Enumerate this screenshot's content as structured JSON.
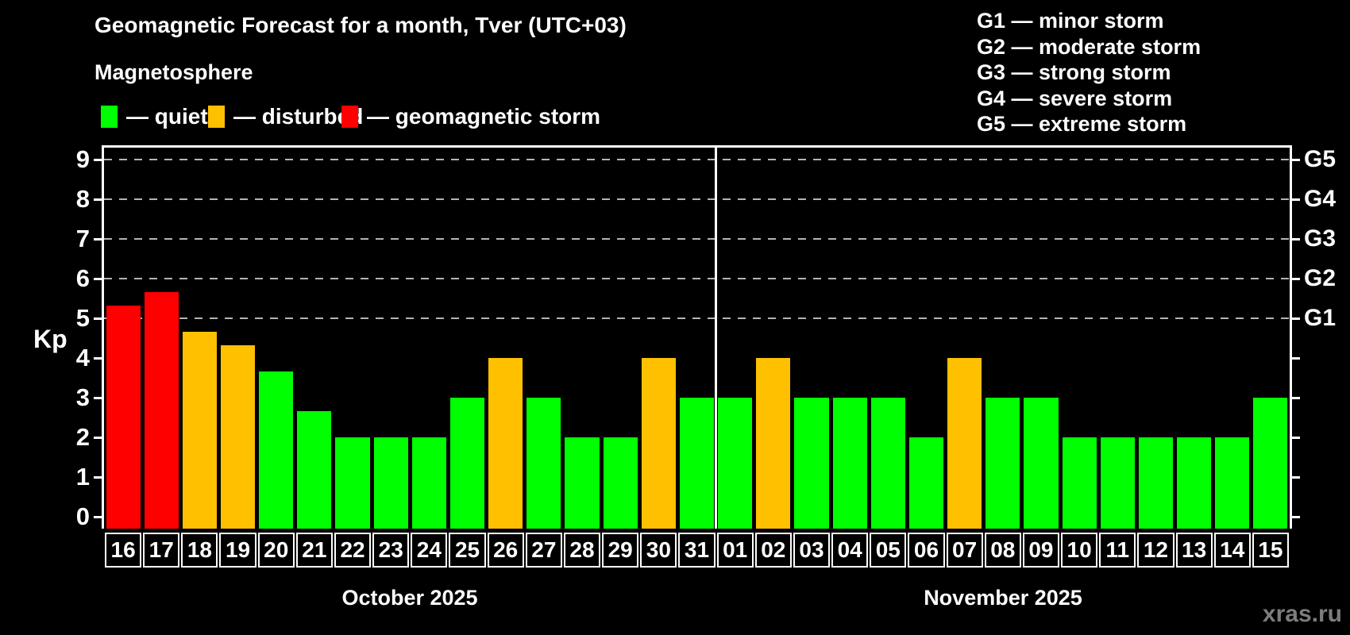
{
  "header": {
    "title": "Geomagnetic Forecast for a month, Tver (UTC+03)",
    "subtitle": "Magnetosphere"
  },
  "legend": {
    "items": [
      {
        "key": "quiet",
        "label": "— quiet",
        "color": "#00ff00"
      },
      {
        "key": "disturbed",
        "label": "— disturbed",
        "color": "#ffc000"
      },
      {
        "key": "storm",
        "label": "— geomagnetic storm",
        "color": "#ff0000"
      }
    ]
  },
  "storm_scale_legend": {
    "items": [
      "G1 — minor storm",
      "G2 — moderate storm",
      "G3 — strong storm",
      "G4 — severe storm",
      "G5 — extreme storm"
    ]
  },
  "watermark": "xras.ru",
  "chart_data": {
    "type": "bar",
    "ylabel": "Kp",
    "ylim": [
      -0.35,
      9.35
    ],
    "yticks": [
      0,
      1,
      2,
      3,
      4,
      5,
      6,
      7,
      8,
      9
    ],
    "gridlines": [
      5,
      6,
      7,
      8,
      9
    ],
    "grid_on": true,
    "right_axis_labels": [
      {
        "value": 5,
        "label": "G1"
      },
      {
        "value": 6,
        "label": "G2"
      },
      {
        "value": 7,
        "label": "G3"
      },
      {
        "value": 8,
        "label": "G4"
      },
      {
        "value": 9,
        "label": "G5"
      }
    ],
    "status_colors": {
      "quiet": "#00ff00",
      "disturbed": "#ffc000",
      "storm": "#ff0000"
    },
    "months": [
      {
        "label": "October 2025",
        "bars": [
          {
            "day": "16",
            "kp": 5.33,
            "status": "storm"
          },
          {
            "day": "17",
            "kp": 5.67,
            "status": "storm"
          },
          {
            "day": "18",
            "kp": 4.67,
            "status": "disturbed"
          },
          {
            "day": "19",
            "kp": 4.33,
            "status": "disturbed"
          },
          {
            "day": "20",
            "kp": 3.67,
            "status": "quiet"
          },
          {
            "day": "21",
            "kp": 2.67,
            "status": "quiet"
          },
          {
            "day": "22",
            "kp": 2.0,
            "status": "quiet"
          },
          {
            "day": "23",
            "kp": 2.0,
            "status": "quiet"
          },
          {
            "day": "24",
            "kp": 2.0,
            "status": "quiet"
          },
          {
            "day": "25",
            "kp": 3.0,
            "status": "quiet"
          },
          {
            "day": "26",
            "kp": 4.0,
            "status": "disturbed"
          },
          {
            "day": "27",
            "kp": 3.0,
            "status": "quiet"
          },
          {
            "day": "28",
            "kp": 2.0,
            "status": "quiet"
          },
          {
            "day": "29",
            "kp": 2.0,
            "status": "quiet"
          },
          {
            "day": "30",
            "kp": 4.0,
            "status": "disturbed"
          },
          {
            "day": "31",
            "kp": 3.0,
            "status": "quiet"
          }
        ]
      },
      {
        "label": "November 2025",
        "bars": [
          {
            "day": "01",
            "kp": 3.0,
            "status": "quiet"
          },
          {
            "day": "02",
            "kp": 4.0,
            "status": "disturbed"
          },
          {
            "day": "03",
            "kp": 3.0,
            "status": "quiet"
          },
          {
            "day": "04",
            "kp": 3.0,
            "status": "quiet"
          },
          {
            "day": "05",
            "kp": 3.0,
            "status": "quiet"
          },
          {
            "day": "06",
            "kp": 2.0,
            "status": "quiet"
          },
          {
            "day": "07",
            "kp": 4.0,
            "status": "disturbed"
          },
          {
            "day": "08",
            "kp": 3.0,
            "status": "quiet"
          },
          {
            "day": "09",
            "kp": 3.0,
            "status": "quiet"
          },
          {
            "day": "10",
            "kp": 2.0,
            "status": "quiet"
          },
          {
            "day": "11",
            "kp": 2.0,
            "status": "quiet"
          },
          {
            "day": "12",
            "kp": 2.0,
            "status": "quiet"
          },
          {
            "day": "13",
            "kp": 2.0,
            "status": "quiet"
          },
          {
            "day": "14",
            "kp": 2.0,
            "status": "quiet"
          },
          {
            "day": "15",
            "kp": 3.0,
            "status": "quiet"
          }
        ]
      }
    ]
  }
}
